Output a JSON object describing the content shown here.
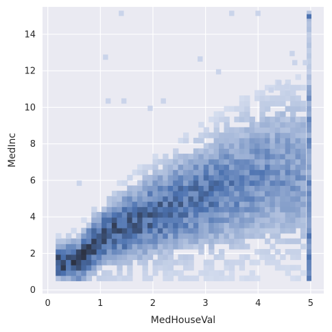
{
  "chart_data": {
    "type": "heatmap",
    "subtype": "2d-histogram",
    "xlabel": "MedHouseVal",
    "ylabel": "MedInc",
    "xlim": [
      -0.1,
      5.25
    ],
    "ylim": [
      -0.2,
      15.5
    ],
    "xticks": [
      0,
      1,
      2,
      3,
      4,
      5
    ],
    "yticks": [
      0,
      2,
      4,
      6,
      8,
      10,
      12,
      14
    ],
    "grid": true,
    "background_color": "#eaeaf2",
    "grid_color": "#ffffff",
    "colormap": {
      "low": "#e3e8f5",
      "mid": "#4c72b0",
      "high": "#2d3344"
    },
    "bins": {
      "x_edges": [
        0.15,
        5.0
      ],
      "y_edges": [
        0.5,
        15.0
      ],
      "x_step": 0.097,
      "y_step": 0.29
    },
    "density_ridge": {
      "description_points": [
        [
          0.5,
          1.4
        ],
        [
          1.0,
          2.8
        ],
        [
          1.5,
          3.4
        ],
        [
          2.0,
          4.0
        ],
        [
          2.5,
          4.6
        ],
        [
          3.0,
          5.1
        ],
        [
          3.5,
          5.6
        ],
        [
          4.0,
          6.1
        ],
        [
          4.5,
          6.3
        ]
      ]
    },
    "hot_spots": [
      {
        "x": 0.65,
        "y": 1.8,
        "intensity": 0.95
      },
      {
        "x": 0.8,
        "y": 2.2,
        "intensity": 0.85
      },
      {
        "x": 1.0,
        "y": 2.7,
        "intensity": 0.8
      },
      {
        "x": 1.35,
        "y": 3.0,
        "intensity": 0.7
      },
      {
        "x": 1.6,
        "y": 3.7,
        "intensity": 0.65
      },
      {
        "x": 1.9,
        "y": 3.4,
        "intensity": 0.55
      }
    ],
    "cap_column": {
      "x": 4.97,
      "y_range": [
        0.5,
        15.0
      ],
      "top_value": 15.0
    },
    "outliers": [
      [
        1.35,
        15.0
      ],
      [
        3.45,
        15.0
      ],
      [
        3.95,
        15.0
      ],
      [
        4.65,
        12.3
      ],
      [
        4.85,
        12.3
      ],
      [
        4.6,
        12.8
      ],
      [
        1.05,
        12.6
      ],
      [
        2.85,
        12.5
      ],
      [
        3.2,
        11.8
      ],
      [
        4.35,
        11.2
      ],
      [
        4.5,
        11.0
      ],
      [
        4.2,
        10.8
      ],
      [
        1.1,
        10.2
      ],
      [
        1.4,
        10.2
      ],
      [
        2.15,
        10.2
      ],
      [
        1.9,
        9.8
      ],
      [
        0.55,
        5.7
      ]
    ]
  }
}
